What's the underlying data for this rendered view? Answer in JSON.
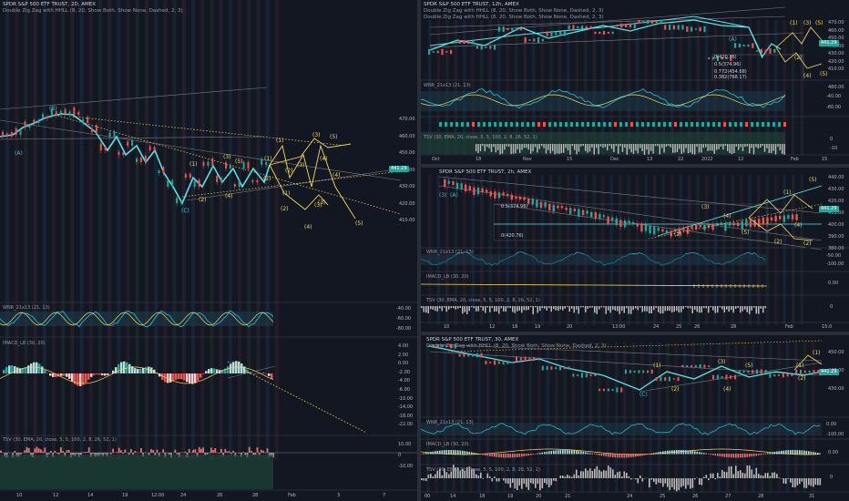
{
  "left_panel": {
    "title": "SPDR S&P 500 ETF TRUST, 2D, AMEX",
    "subtitle": "Double Zig Zag with HHLL (8, 20, Show Both, Show None, Dashed, 2, 3)",
    "price_tag": "441.29",
    "price_tag_color": "#26a69a",
    "y_ticks": [
      "470.00",
      "460.00",
      "450.00",
      "440.00",
      "430.00",
      "420.00",
      "410.00"
    ],
    "x_ticks": [
      "10",
      "12",
      "14",
      "19",
      "12:00",
      "24",
      "26",
      "28",
      "Feb",
      "3",
      "7"
    ],
    "wave_labels": {
      "B": "(B)",
      "A": "(A)",
      "C": "(C)",
      "w1": "(1)",
      "w2": "(2)",
      "w3": "(3)",
      "w4": "(4)",
      "w5": "(5)"
    },
    "wnr_label": "WNR_21x13 (21, 13)",
    "wnr_ticks": [
      "-40.00",
      "-60.00",
      "-80.00"
    ],
    "macd_label": "IMACD_LB (30, 20)",
    "macd_ticks": [
      "4.00",
      "2.00",
      "0.00",
      "-2.00",
      "-4.00",
      "-6.00",
      "-10.00",
      "-14.00",
      "-18.00",
      "-22.00"
    ],
    "tsv_label": "TSV (30, EMA, 20, close, 5, 5, 100, 2, 8, 26, 52, 1)",
    "tsv_ticks": [
      "10.00",
      "0",
      "-10.00"
    ]
  },
  "top_right": {
    "title": "SPDR S&P 500 ETF TRUST, 12h, AMEX",
    "subtitle1": "Double Zig Zag with HHLL (8, 20, Show Both, Show None, Dashed, 2, 3)",
    "subtitle2": "Double Zig Zag with HHLL (8, 20, Show Both, Show None, Dashed, 2, 3)",
    "price_tag": "441.29",
    "y_ticks": [
      "480.00",
      "470.00",
      "460.00",
      "450.00",
      "440.00",
      "430.00",
      "420.00",
      "410.00"
    ],
    "x_ticks": [
      "Oct",
      "18",
      "Nov",
      "15",
      "Dec",
      "13",
      "22",
      "2022",
      "12",
      "Feb",
      "15"
    ],
    "fib_labels": [
      "0(420.76)",
      "0.5(374.96)",
      "0.772(454.68)",
      "0.382(768.17)"
    ],
    "wnr_label": "WNR_21x13 (21, 13)",
    "wnr_ticks": [
      "-40.00",
      "-80.00"
    ],
    "tsv_label": "TSV (30, EMA, 20, close, 5, 5, 100, 2, 8, 26, 52, 1)",
    "tsv_ticks": [
      "0",
      "-10"
    ]
  },
  "mid_right": {
    "title": "SPDR S&P 500 ETF TRUST, 2h, AMEX",
    "price_tag": "441.29",
    "y_ticks": [
      "440.00",
      "430.00",
      "420.00",
      "410.00",
      "400.00",
      "390.00",
      "380.00"
    ],
    "x_ticks": [
      "10",
      "12",
      "18",
      "19",
      "20",
      "13:00",
      "24",
      "25",
      "26",
      "28",
      "Feb",
      "15:0"
    ],
    "fib_labels": [
      "0(420.76)",
      "0.5(374.96)"
    ],
    "wnr_label": "WNR_21x13 (21, 13)",
    "wnr_ticks": [
      "-50.00",
      "-100.00"
    ],
    "macd_label": "IMACD_LB (30, 20)",
    "macd_ticks": [
      "0.00"
    ],
    "tsv_label": "TSV (30, EMA, 20, close, 5, 5, 100, 2, 8, 26, 52, 1)",
    "tsv_ticks": [
      "0"
    ]
  },
  "bottom_right": {
    "title": "SPDR S&P 500 ETF TRUST, 30, AMEX",
    "subtitle": "Double Zig Zag with HHLL (8, 20, Show Both, Show None, Dashed, 2, 3)",
    "price_tag": "441.29",
    "y_ticks": [
      "450.00",
      "440.00",
      "430.00"
    ],
    "x_ticks": [
      "00",
      "14",
      "18",
      "19",
      "20",
      "21",
      "24",
      "25",
      "26",
      "27",
      "28",
      "31"
    ],
    "wnr_label": "WNR_21x13 (21, 13)",
    "wnr_ticks": [
      "0.00",
      "-100.00"
    ],
    "macd_label": "IMACD_LB (30, 20)",
    "macd_ticks": [
      "0.00"
    ],
    "tsv_label": "TSV (30, EMA, 20, close, 5, 5, 100, 2, 8, 26, 52, 1)",
    "tsv_ticks": [
      "0"
    ]
  },
  "colors": {
    "bg": "#131722",
    "up": "#26a69a",
    "down": "#ef5350",
    "zigzag": "#5ce1e6",
    "wave_yellow": "#f5d95a",
    "price_tag": "#26a69a"
  }
}
